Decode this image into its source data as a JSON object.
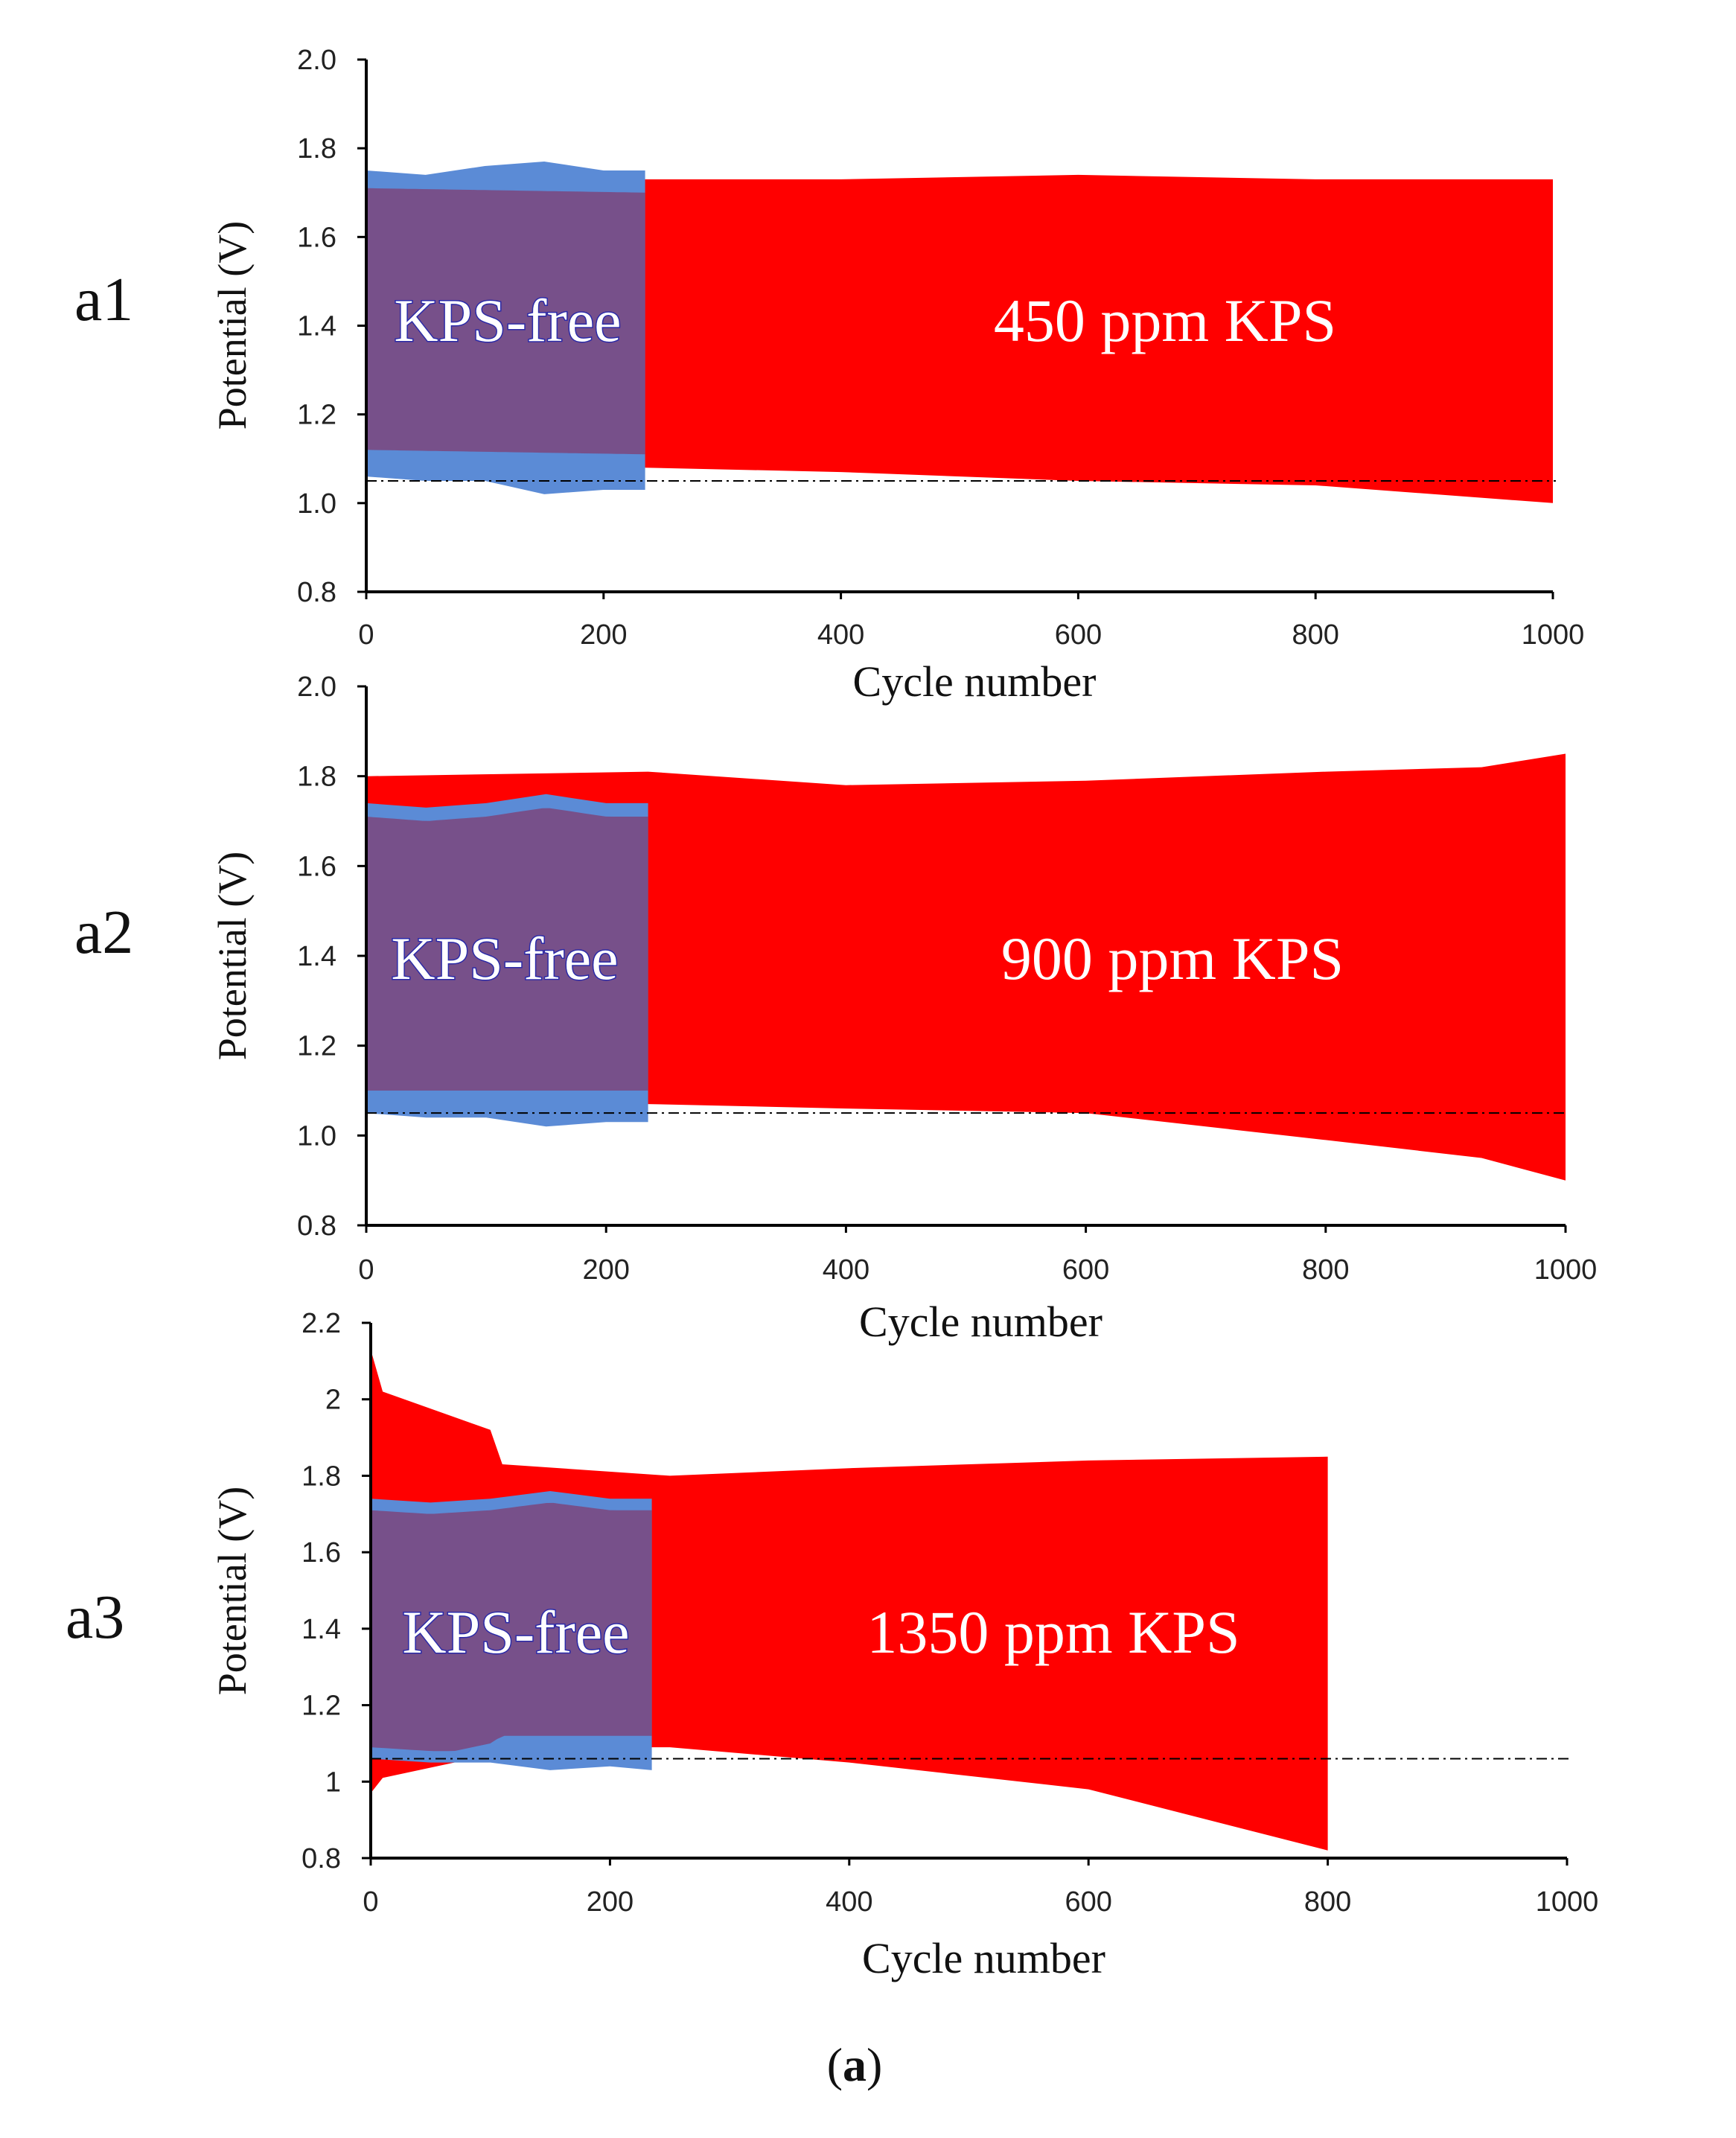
{
  "figure_caption": {
    "open": "(",
    "letter": "a",
    "close": ")"
  },
  "chart_data": [
    {
      "type": "area",
      "panel_tag": "a1",
      "xlabel": "Cycle number",
      "ylabel": "Potential (V)",
      "xlim": [
        0,
        1000
      ],
      "ylim": [
        0.8,
        2.0
      ],
      "x_ticks": [
        "0",
        "200",
        "400",
        "600",
        "800",
        "1000"
      ],
      "y_ticks": [
        "0.8",
        "1.0",
        "1.2",
        "1.4",
        "1.6",
        "1.8",
        "2.0"
      ],
      "reference_line_y": 1.05,
      "annotations": {
        "kps_free": "KPS-free",
        "kps": "450 ppm KPS"
      },
      "colors": {
        "kps": "#ff0000",
        "kps_free": "#5b8bd6",
        "overlap": "#77508a"
      },
      "series": [
        {
          "name": "450 ppm KPS",
          "x": [
            0,
            235,
            400,
            600,
            800,
            1000
          ],
          "upper": [
            1.74,
            1.73,
            1.73,
            1.74,
            1.73,
            1.73
          ],
          "lower": [
            1.09,
            1.08,
            1.07,
            1.05,
            1.04,
            1.0
          ]
        },
        {
          "name": "KPS-free",
          "x": [
            0,
            50,
            100,
            150,
            200,
            235
          ],
          "upper": [
            1.75,
            1.74,
            1.76,
            1.77,
            1.75,
            1.75
          ],
          "lower": [
            1.06,
            1.05,
            1.05,
            1.02,
            1.03,
            1.03
          ]
        }
      ]
    },
    {
      "type": "area",
      "panel_tag": "a2",
      "xlabel": "Cycle number",
      "ylabel": "Potential (V)",
      "xlim": [
        0,
        1000
      ],
      "ylim": [
        0.8,
        2.0
      ],
      "x_ticks": [
        "0",
        "200",
        "400",
        "600",
        "800",
        "1000"
      ],
      "y_ticks": [
        "0.8",
        "1.0",
        "1.2",
        "1.4",
        "1.6",
        "1.8",
        "2.0"
      ],
      "reference_line_y": 1.05,
      "annotations": {
        "kps_free": "KPS-free",
        "kps": "900 ppm KPS"
      },
      "colors": {
        "kps": "#ff0000",
        "kps_free": "#5b8bd6",
        "overlap": "#77508a"
      },
      "series": [
        {
          "name": "900 ppm KPS",
          "x": [
            0,
            235,
            400,
            600,
            800,
            930,
            1000
          ],
          "upper": [
            1.8,
            1.81,
            1.78,
            1.79,
            1.81,
            1.82,
            1.85
          ],
          "lower": [
            1.07,
            1.07,
            1.06,
            1.05,
            0.99,
            0.95,
            0.9
          ]
        },
        {
          "name": "KPS-free",
          "x": [
            0,
            50,
            100,
            150,
            200,
            235
          ],
          "upper": [
            1.74,
            1.73,
            1.74,
            1.76,
            1.74,
            1.74
          ],
          "lower": [
            1.05,
            1.04,
            1.04,
            1.02,
            1.03,
            1.03
          ]
        }
      ]
    },
    {
      "type": "area",
      "panel_tag": "a3",
      "xlabel": "Cycle number",
      "ylabel": "Potential (V)",
      "xlim": [
        0,
        1000
      ],
      "ylim": [
        0.8,
        2.2
      ],
      "x_ticks": [
        "0",
        "200",
        "400",
        "600",
        "800",
        "1000"
      ],
      "y_ticks": [
        "0.8",
        "1",
        "1.2",
        "1.4",
        "1.6",
        "1.8",
        "2",
        "2.2"
      ],
      "reference_line_y": 1.06,
      "annotations": {
        "kps_free": "KPS-free",
        "kps": "1350 ppm KPS"
      },
      "colors": {
        "kps": "#ff0000",
        "kps_free": "#5b8bd6",
        "overlap": "#77508a"
      },
      "series": [
        {
          "name": "1350 ppm KPS",
          "x": [
            0,
            10,
            100,
            110,
            250,
            400,
            600,
            800
          ],
          "upper": [
            2.13,
            2.02,
            1.92,
            1.83,
            1.8,
            1.82,
            1.84,
            1.85
          ],
          "lower": [
            0.97,
            1.01,
            1.07,
            1.09,
            1.09,
            1.05,
            0.98,
            0.82
          ]
        },
        {
          "name": "KPS-free",
          "x": [
            0,
            50,
            100,
            150,
            200,
            235
          ],
          "upper": [
            1.74,
            1.73,
            1.74,
            1.76,
            1.74,
            1.74
          ],
          "lower": [
            1.06,
            1.05,
            1.05,
            1.03,
            1.04,
            1.03
          ]
        }
      ]
    }
  ]
}
